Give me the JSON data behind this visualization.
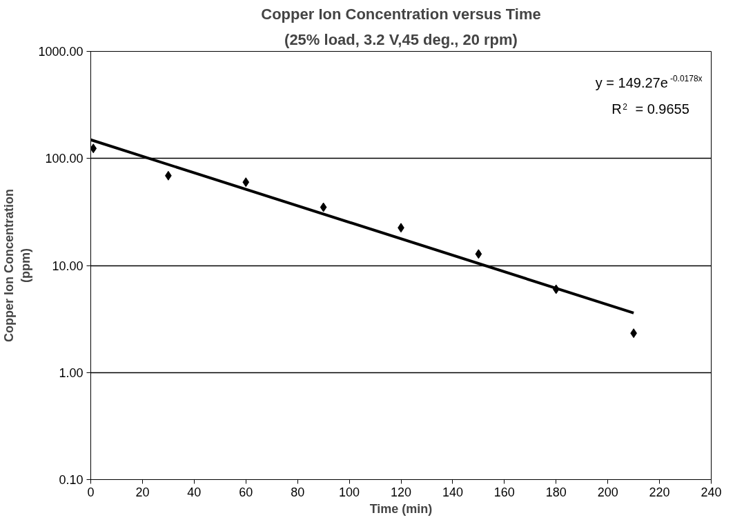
{
  "chart_data": {
    "type": "scatter",
    "title": "Copper Ion Concentration versus Time",
    "subtitle": "(25% load, 3.2 V,45 deg., 20 rpm)",
    "xlabel": "Time (min)",
    "ylabel": "Copper Ion Concentration\n(ppm)",
    "x": [
      1,
      30,
      60,
      90,
      120,
      150,
      180,
      210
    ],
    "series": [
      {
        "color": "#000000",
        "marker": "diamond",
        "values": [
          124,
          69,
          60,
          35,
          22.5,
          12.8,
          6.0,
          2.33
        ]
      },
      {
        "type": "line",
        "color": "#000000",
        "marker": "none",
        "line_style": "solid",
        "x": [
          0,
          210
        ],
        "values": [
          149.3,
          3.6
        ]
      }
    ],
    "annotations": [
      "y = 149.27e$^{-0.0178x}$",
      "R$^{2}$ = 0.9655"
    ],
    "log": "y",
    "xlim": [
      0,
      240
    ],
    "xticks": [
      0,
      20,
      40,
      60,
      80,
      100,
      120,
      140,
      160,
      180,
      200,
      220,
      240
    ],
    "ylim": [
      0.1,
      1000
    ],
    "yticks": [
      {
        "value": 0.1,
        "label": "0.10"
      },
      {
        "value": 1,
        "label": "1.00"
      },
      {
        "value": 10,
        "label": "10.00"
      },
      {
        "value": 100,
        "label": "100.00"
      },
      {
        "value": 1000,
        "label": "1000.00"
      }
    ],
    "grid": "y"
  }
}
